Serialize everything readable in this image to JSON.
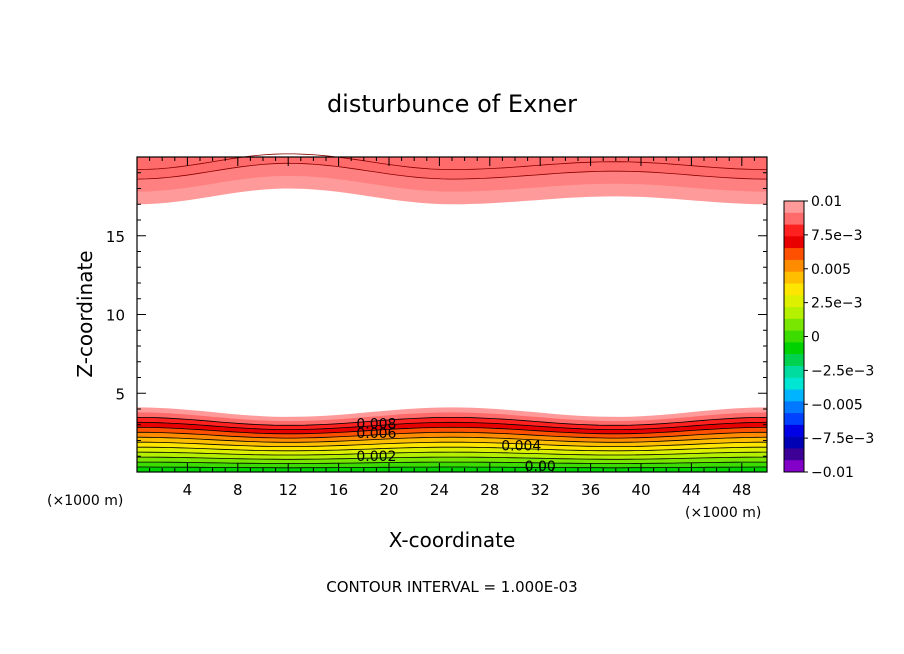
{
  "chart_data": {
    "type": "contour",
    "title": "disturbunce of Exner",
    "xlabel": "X-coordinate",
    "ylabel": "Z-coordinate",
    "x_units_left": "(×1000 m)",
    "x_units_right": "(×1000 m)",
    "xlim": [
      0,
      50
    ],
    "ylim": [
      0,
      20
    ],
    "x_ticks": [
      "4",
      "8",
      "12",
      "16",
      "20",
      "24",
      "28",
      "32",
      "36",
      "40",
      "44",
      "48"
    ],
    "y_ticks": [
      "5",
      "10",
      "15"
    ],
    "colorbar": {
      "labels": [
        "0.01",
        "7.5e−3",
        "0.005",
        "2.5e−3",
        "0",
        "−2.5e−3",
        "−0.005",
        "−7.5e−3",
        "−0.01"
      ],
      "colors": [
        "#ff9a9a",
        "#ff6a6a",
        "#ff2020",
        "#e80000",
        "#ff5000",
        "#ff8c00",
        "#ffbe00",
        "#ffe600",
        "#dcf000",
        "#b4f000",
        "#78e600",
        "#3cdc00",
        "#00d200",
        "#00d250",
        "#00dca0",
        "#00e6d2",
        "#00b4ff",
        "#0078ff",
        "#0040ff",
        "#0000e6",
        "#0000b4",
        "#3c0096",
        "#8200c8"
      ]
    },
    "contour_labels": [
      "0.008",
      "0.006",
      "0.002",
      "0.004",
      "0.00"
    ],
    "contour_interval": "CONTOUR INTERVAL = 1.000E-03",
    "top_band": {
      "base_z": [
        17.0,
        18.0,
        17.0,
        17.5,
        17.0
      ],
      "base_x": [
        0,
        12,
        25,
        38,
        50
      ]
    },
    "bottom_band": {
      "top_z": [
        4.1,
        3.5,
        4.1,
        3.5,
        4.1
      ],
      "top_x": [
        0,
        12,
        25,
        38,
        50
      ]
    }
  }
}
